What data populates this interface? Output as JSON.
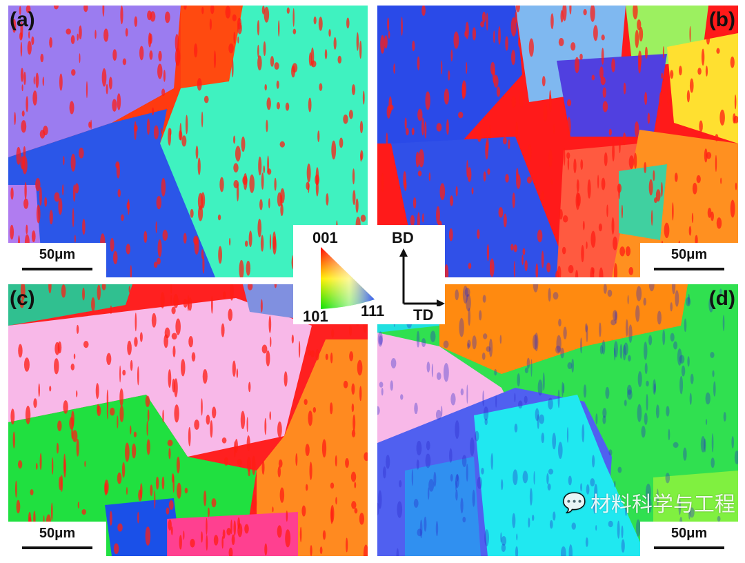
{
  "panels": [
    {
      "label": "(a)",
      "scale_bar": "50μm",
      "colors": [
        "#ff4a1a",
        "#9b7cf0",
        "#2b56e8",
        "#3ff2c0",
        "#ff2a10"
      ]
    },
    {
      "label": "(b)",
      "scale_bar": "50μm",
      "colors": [
        "#ff1a1a",
        "#2a4ae8",
        "#7fb8f0",
        "#9cf060",
        "#ffe030",
        "#ff9020",
        "#ff5a40"
      ]
    },
    {
      "label": "(c)",
      "scale_bar": "50μm",
      "colors": [
        "#ff2020",
        "#f8b8e8",
        "#20e040",
        "#ff8a20",
        "#1a50e8",
        "#ff4090"
      ]
    },
    {
      "label": "(d)",
      "scale_bar": "50μm",
      "colors": [
        "#30e050",
        "#ff8a10",
        "#20f0f0",
        "#5060f0",
        "#f8b8e8",
        "#80f040"
      ]
    }
  ],
  "legend": {
    "ipf_corners": {
      "top": "001",
      "bottom_left": "101",
      "bottom_right": "111"
    },
    "axes": {
      "vertical": "BD",
      "horizontal": "TD"
    }
  },
  "watermark": {
    "text": "材料科学与工程",
    "icon": "wechat-icon"
  }
}
